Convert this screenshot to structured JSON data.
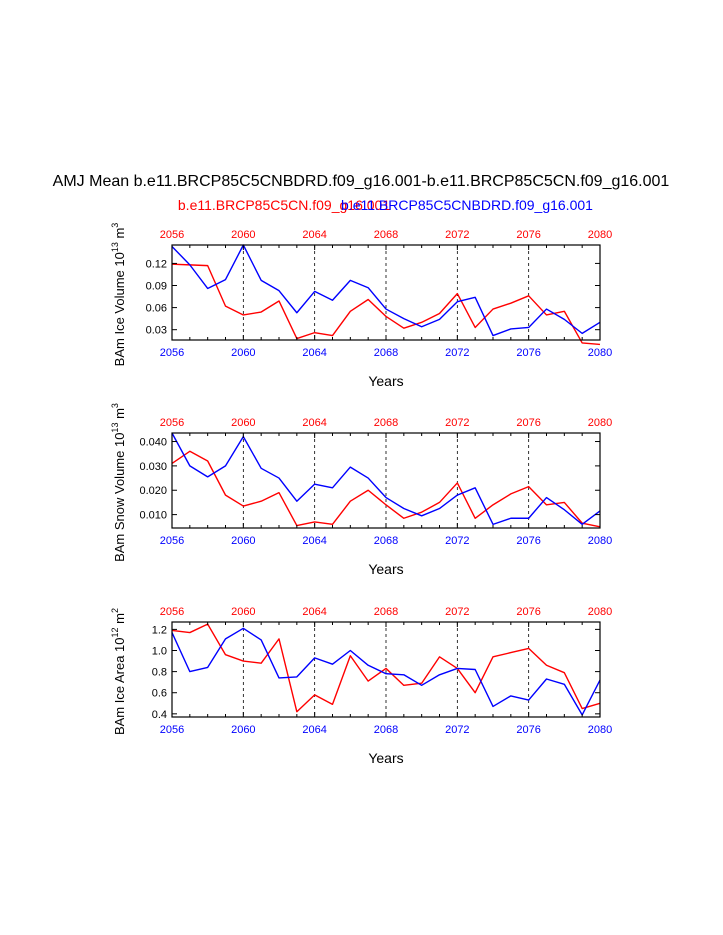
{
  "title": "AMJ Mean b.e11.BRCP85C5CNBDRD.f09_g16.001-b.e11.BRCP85C5CN.f09_g16.001",
  "legend": {
    "red_label": "b.e11.BRCP85C5CN.f09_g16.001",
    "blue_label": "b.e11.BRCP85C5CNBDRD.f09_g16.001"
  },
  "colors": {
    "red": "#ff0000",
    "blue": "#0000ff",
    "axis": "#000000",
    "grid": "#000000"
  },
  "chart_data": [
    {
      "type": "line",
      "ylabel": "BAm Ice Volume 10",
      "ylabel_exp": "13",
      "ylabel_unit": " m",
      "ylabel_unit_exp": "3",
      "xlabel": "Years",
      "xlim": [
        2056,
        2080
      ],
      "ylim": [
        0.016,
        0.145
      ],
      "yticks": [
        0.03,
        0.06,
        0.09,
        0.12
      ],
      "ytick_labels": [
        "0.03",
        "0.06",
        "0.09",
        "0.12"
      ],
      "xticks": [
        2056,
        2060,
        2064,
        2068,
        2072,
        2076,
        2080
      ],
      "xtick_labels": [
        "2056",
        "2060",
        "2064",
        "2068",
        "2072",
        "2076",
        "2080"
      ],
      "x": [
        2056,
        2057,
        2058,
        2059,
        2060,
        2061,
        2062,
        2063,
        2064,
        2065,
        2066,
        2067,
        2068,
        2069,
        2070,
        2071,
        2072,
        2073,
        2074,
        2075,
        2076,
        2077,
        2078,
        2079,
        2080
      ],
      "series": [
        {
          "name": "b.e11.BRCP85C5CN.f09_g16.001",
          "color": "red",
          "values": [
            0.119,
            0.118,
            0.117,
            0.062,
            0.05,
            0.054,
            0.069,
            0.018,
            0.026,
            0.022,
            0.055,
            0.071,
            0.048,
            0.032,
            0.04,
            0.052,
            0.079,
            0.033,
            0.058,
            0.066,
            0.076,
            0.05,
            0.055,
            0.012,
            0.01
          ]
        },
        {
          "name": "b.e11.BRCP85C5CNBDRD.f09_g16.001",
          "color": "blue",
          "values": [
            0.143,
            0.118,
            0.086,
            0.098,
            0.145,
            0.097,
            0.083,
            0.053,
            0.082,
            0.07,
            0.097,
            0.087,
            0.058,
            0.045,
            0.034,
            0.044,
            0.068,
            0.074,
            0.022,
            0.031,
            0.033,
            0.058,
            0.044,
            0.025,
            0.04
          ]
        }
      ]
    },
    {
      "type": "line",
      "ylabel": "BAm Snow Volume 10",
      "ylabel_exp": "13",
      "ylabel_unit": " m",
      "ylabel_unit_exp": "3",
      "xlabel": "Years",
      "xlim": [
        2056,
        2080
      ],
      "ylim": [
        0.0045,
        0.0435
      ],
      "yticks": [
        0.01,
        0.02,
        0.03,
        0.04
      ],
      "ytick_labels": [
        "0.010",
        "0.020",
        "0.030",
        "0.040"
      ],
      "xticks": [
        2056,
        2060,
        2064,
        2068,
        2072,
        2076,
        2080
      ],
      "xtick_labels": [
        "2056",
        "2060",
        "2064",
        "2068",
        "2072",
        "2076",
        "2080"
      ],
      "x": [
        2056,
        2057,
        2058,
        2059,
        2060,
        2061,
        2062,
        2063,
        2064,
        2065,
        2066,
        2067,
        2068,
        2069,
        2070,
        2071,
        2072,
        2073,
        2074,
        2075,
        2076,
        2077,
        2078,
        2079,
        2080
      ],
      "series": [
        {
          "name": "b.e11.BRCP85C5CN.f09_g16.001",
          "color": "red",
          "values": [
            0.031,
            0.036,
            0.032,
            0.018,
            0.0135,
            0.0155,
            0.019,
            0.0055,
            0.007,
            0.006,
            0.0155,
            0.02,
            0.014,
            0.0085,
            0.011,
            0.015,
            0.023,
            0.0085,
            0.014,
            0.0185,
            0.0215,
            0.014,
            0.015,
            0.0065,
            0.005
          ]
        },
        {
          "name": "b.e11.BRCP85C5CNBDRD.f09_g16.001",
          "color": "blue",
          "values": [
            0.0435,
            0.03,
            0.0255,
            0.03,
            0.042,
            0.029,
            0.025,
            0.0155,
            0.0225,
            0.021,
            0.0295,
            0.025,
            0.017,
            0.0125,
            0.0095,
            0.0125,
            0.018,
            0.021,
            0.006,
            0.0085,
            0.0085,
            0.017,
            0.012,
            0.006,
            0.0115
          ]
        }
      ]
    },
    {
      "type": "line",
      "ylabel": "BAm Ice Area 10",
      "ylabel_exp": "12",
      "ylabel_unit": " m",
      "ylabel_unit_exp": "2",
      "xlabel": "Years",
      "xlim": [
        2056,
        2080
      ],
      "ylim": [
        0.37,
        1.27
      ],
      "yticks": [
        0.4,
        0.6,
        0.8,
        1.0,
        1.2
      ],
      "ytick_labels": [
        "0.4",
        "0.6",
        "0.8",
        "1.0",
        "1.2"
      ],
      "xticks": [
        2056,
        2060,
        2064,
        2068,
        2072,
        2076,
        2080
      ],
      "xtick_labels": [
        "2056",
        "2060",
        "2064",
        "2068",
        "2072",
        "2076",
        "2080"
      ],
      "x": [
        2056,
        2057,
        2058,
        2059,
        2060,
        2061,
        2062,
        2063,
        2064,
        2065,
        2066,
        2067,
        2068,
        2069,
        2070,
        2071,
        2072,
        2073,
        2074,
        2075,
        2076,
        2077,
        2078,
        2079,
        2080
      ],
      "series": [
        {
          "name": "b.e11.BRCP85C5CN.f09_g16.001",
          "color": "red",
          "values": [
            1.19,
            1.17,
            1.25,
            0.96,
            0.9,
            0.88,
            1.11,
            0.42,
            0.58,
            0.49,
            0.95,
            0.71,
            0.83,
            0.67,
            0.69,
            0.94,
            0.83,
            0.6,
            0.94,
            0.98,
            1.02,
            0.86,
            0.79,
            0.45,
            0.5
          ]
        },
        {
          "name": "b.e11.BRCP85C5CNBDRD.f09_g16.001",
          "color": "blue",
          "values": [
            1.17,
            0.8,
            0.84,
            1.11,
            1.21,
            1.1,
            0.74,
            0.75,
            0.93,
            0.87,
            1.0,
            0.86,
            0.78,
            0.77,
            0.67,
            0.77,
            0.83,
            0.82,
            0.47,
            0.57,
            0.53,
            0.73,
            0.68,
            0.39,
            0.72
          ]
        }
      ]
    }
  ]
}
